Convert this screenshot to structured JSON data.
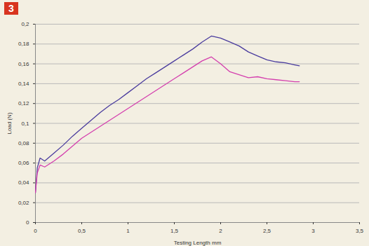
{
  "chart_data": {
    "type": "line",
    "title": "3",
    "x_label": "Testing Length mm",
    "y_label": "Load (N)",
    "x": [
      0,
      0.02,
      0.05,
      0.1,
      0.2,
      0.3,
      0.4,
      0.5,
      0.6,
      0.7,
      0.8,
      0.9,
      1.0,
      1.1,
      1.2,
      1.3,
      1.4,
      1.5,
      1.6,
      1.7,
      1.8,
      1.9,
      2.0,
      2.1,
      2.2,
      2.3,
      2.4,
      2.5,
      2.6,
      2.7,
      2.8,
      2.85
    ],
    "series": [
      {
        "color": "#4a3c9e",
        "values": [
          0.03,
          0.055,
          0.065,
          0.062,
          0.07,
          0.078,
          0.087,
          0.095,
          0.103,
          0.111,
          0.118,
          0.124,
          0.131,
          0.138,
          0.145,
          0.151,
          0.157,
          0.163,
          0.169,
          0.175,
          0.182,
          0.188,
          0.186,
          0.182,
          0.178,
          0.172,
          0.168,
          0.164,
          0.162,
          0.161,
          0.159,
          0.158
        ]
      },
      {
        "color": "#d43fae",
        "values": [
          0.03,
          0.05,
          0.058,
          0.056,
          0.062,
          0.069,
          0.077,
          0.085,
          0.091,
          0.097,
          0.103,
          0.109,
          0.115,
          0.121,
          0.127,
          0.133,
          0.139,
          0.145,
          0.151,
          0.157,
          0.163,
          0.167,
          0.16,
          0.152,
          0.149,
          0.146,
          0.147,
          0.145,
          0.144,
          0.143,
          0.142,
          0.142
        ]
      }
    ],
    "xlim": [
      0,
      3.5
    ],
    "xticks": [
      0,
      {
        "value": 0.5,
        "label": "0,5"
      },
      1,
      {
        "value": 1.5,
        "label": "1,5"
      },
      2,
      {
        "value": 2.5,
        "label": "2,5"
      },
      3,
      {
        "value": 3.5,
        "label": "3,5"
      }
    ],
    "ylim": [
      0,
      0.2
    ],
    "yticks": [
      0,
      {
        "value": 0.02,
        "label": "0,02"
      },
      {
        "value": 0.04,
        "label": "0,04"
      },
      {
        "value": 0.06,
        "label": "0,06"
      },
      {
        "value": 0.08,
        "label": "0,08"
      },
      {
        "value": 0.1,
        "label": "0,1"
      },
      {
        "value": 0.12,
        "label": "0,12"
      },
      {
        "value": 0.14,
        "label": "0,14"
      },
      {
        "value": 0.16,
        "label": "0,16"
      },
      {
        "value": 0.18,
        "label": "0,18"
      },
      {
        "value": 0.2,
        "label": "0,2"
      }
    ],
    "grid": true
  }
}
